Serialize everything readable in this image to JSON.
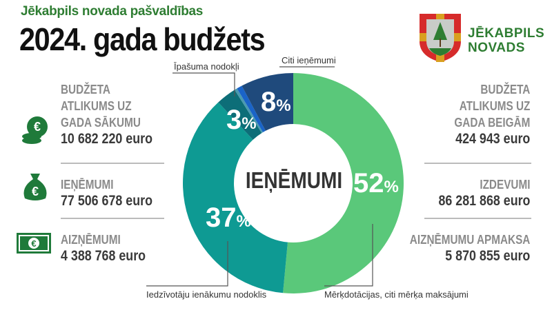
{
  "header": {
    "subtitle": "Jēkabpils novada pašvaldības",
    "title": "2024. gada budžets"
  },
  "logo": {
    "line1": "JĒKABPILS",
    "line2": "NOVADS"
  },
  "left_stats": [
    {
      "label": [
        "BUDŽETA",
        "ATLIKUMS UZ",
        "GADA SĀKUMU"
      ],
      "value": "10 682 220 euro",
      "icon": "coins-euro-icon"
    },
    {
      "label": [
        "IEŅĒMUMI"
      ],
      "value": "77 506 678 euro",
      "icon": "money-bag-euro-icon"
    },
    {
      "label": [
        "AIZŅĒMUMI"
      ],
      "value": "4 388 768 euro",
      "icon": "banknote-euro-icon"
    }
  ],
  "right_stats": [
    {
      "label": [
        "BUDŽETA",
        "ATLIKUMS UZ",
        "GADA BEIGĀM"
      ],
      "value": "424 943 euro"
    },
    {
      "label": [
        "IZDEVUMI"
      ],
      "value": "86 281 868 euro"
    },
    {
      "label": [
        "AIZŅĒMUMU APMAKSA"
      ],
      "value": "5 870 855 euro"
    }
  ],
  "chart_data": {
    "type": "pie",
    "title": "IEŅĒMUMI",
    "pct_sign": "%",
    "slices": [
      {
        "name": "Mērķdotācijas, citi mērķa maksājumi",
        "value": 52,
        "label": "52",
        "color": "#5ac87a"
      },
      {
        "name": "Iedzīvotāju ienākumu nodoklis",
        "value": 37,
        "label": "37",
        "color": "#0e9a93"
      },
      {
        "name": "Īpašuma nodokļi",
        "value": 3,
        "label": "3",
        "color": "#0d6e78"
      },
      {
        "name": "",
        "value": 0.4,
        "label": "",
        "color": "#4a9ab0"
      },
      {
        "name": "",
        "value": 0.8,
        "label": "",
        "color": "#1a64c8"
      },
      {
        "name": "Citi ieņēmumi",
        "value": 7.8,
        "label": "8",
        "color": "#1f4a7c"
      }
    ]
  }
}
